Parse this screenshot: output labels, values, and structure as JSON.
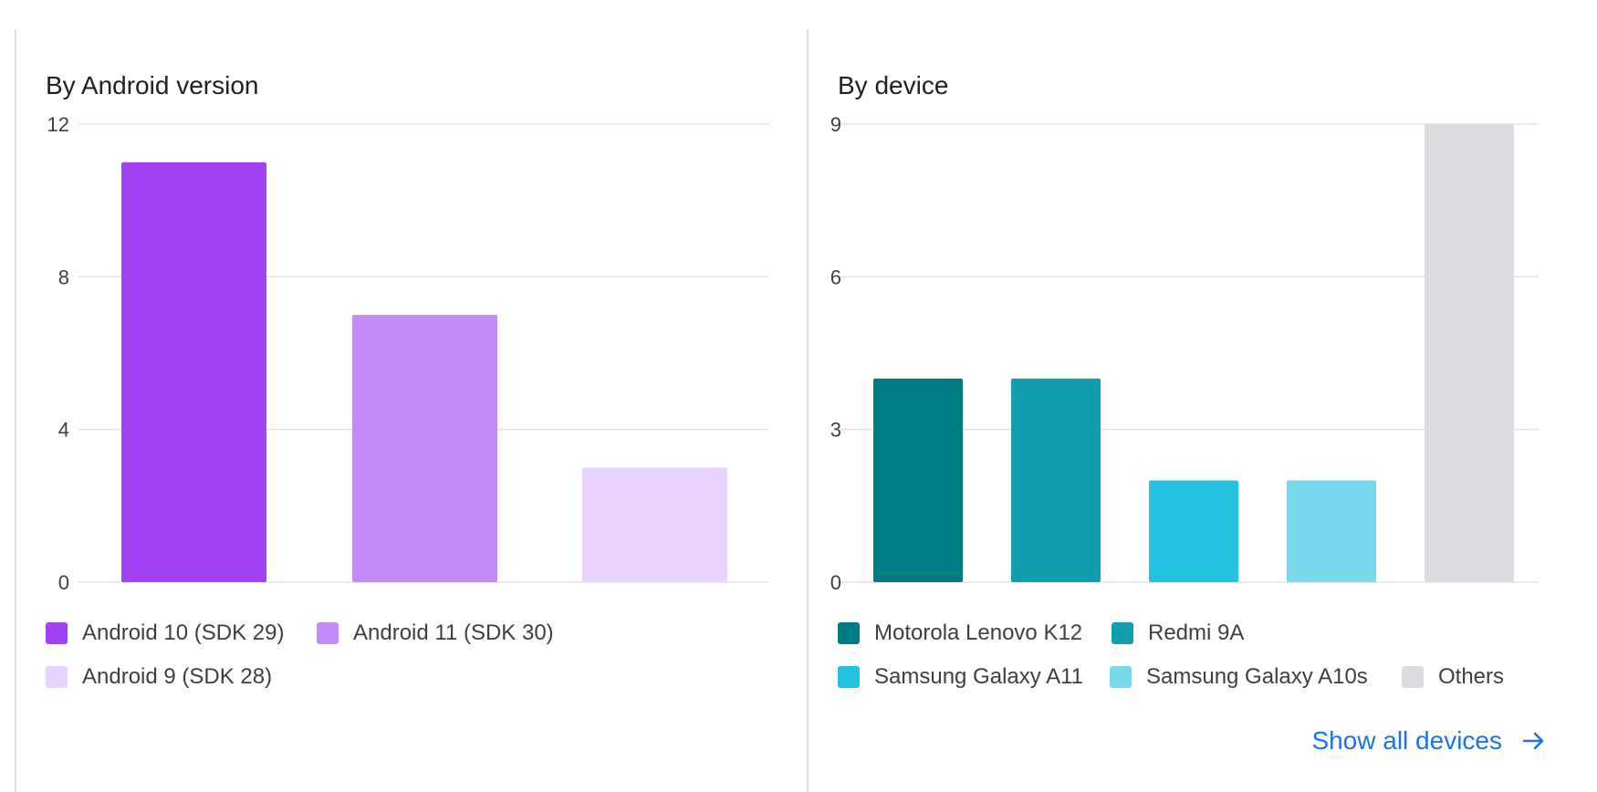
{
  "panels": {
    "android": {
      "title": "By Android version"
    },
    "device": {
      "title": "By device"
    }
  },
  "link": {
    "label": "Show all devices"
  },
  "chart_data": [
    {
      "type": "bar",
      "title": "By Android version",
      "categories": [
        "Android 10 (SDK 29)",
        "Android 11 (SDK 30)",
        "Android 9 (SDK 28)"
      ],
      "values": [
        11,
        7,
        3
      ],
      "colors": [
        "#a142f4",
        "#c58af9",
        "#e9d2fd"
      ],
      "ylim": [
        0,
        12
      ],
      "yticks": [
        0,
        4,
        8,
        12
      ],
      "legend": [
        {
          "label": "Android 10 (SDK 29)",
          "color": "#a142f4"
        },
        {
          "label": "Android 11 (SDK 30)",
          "color": "#c58af9"
        },
        {
          "label": "Android 9 (SDK 28)",
          "color": "#e9d2fd"
        }
      ],
      "grid": true,
      "legend_position": "bottom"
    },
    {
      "type": "bar",
      "title": "By device",
      "categories": [
        "Motorola Lenovo K12",
        "Redmi 9A",
        "Samsung Galaxy A11",
        "Samsung Galaxy A10s",
        "Others"
      ],
      "values": [
        4,
        4,
        2,
        2,
        9
      ],
      "colors": [
        "#007b83",
        "#129eaf",
        "#24c1e0",
        "#78d9ec",
        "#dadce0"
      ],
      "ylim": [
        0,
        9
      ],
      "yticks": [
        0,
        3,
        6,
        9
      ],
      "legend": [
        {
          "label": "Motorola Lenovo K12",
          "color": "#007b83"
        },
        {
          "label": "Redmi 9A",
          "color": "#129eaf"
        },
        {
          "label": "Samsung Galaxy A11",
          "color": "#24c1e0"
        },
        {
          "label": "Samsung Galaxy A10s",
          "color": "#78d9ec"
        },
        {
          "label": "Others",
          "color": "#dadce0"
        }
      ],
      "grid": true,
      "legend_position": "bottom"
    }
  ]
}
